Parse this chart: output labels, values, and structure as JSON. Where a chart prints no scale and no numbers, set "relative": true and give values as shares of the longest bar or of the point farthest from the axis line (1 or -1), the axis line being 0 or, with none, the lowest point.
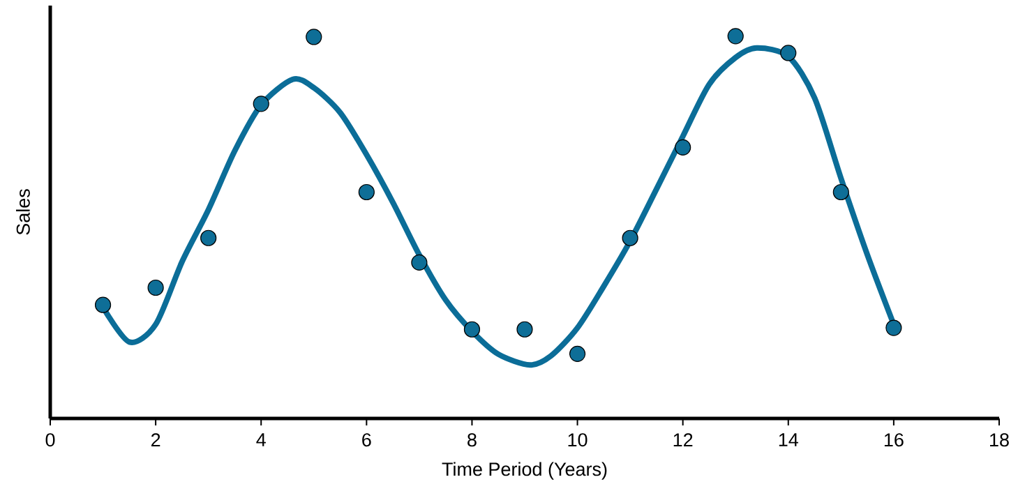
{
  "chart_data": {
    "type": "scatter",
    "xlabel": "Time Period (Years)",
    "ylabel": "Sales",
    "relative": true,
    "xlim": [
      0,
      18
    ],
    "xticks": [
      0,
      2,
      4,
      6,
      8,
      10,
      12,
      14,
      16,
      18
    ],
    "grid": false,
    "series": [
      {
        "type": "line",
        "color": "#0b6d98",
        "marker": "none",
        "line_style": "solid",
        "x": [
          1,
          1.5,
          2,
          2.5,
          3,
          3.5,
          4,
          4.6,
          5,
          5.5,
          6,
          6.5,
          7,
          7.5,
          8,
          8.5,
          9.1,
          9.5,
          10,
          10.5,
          11,
          11.5,
          12,
          12.5,
          13,
          13.4,
          14,
          14.5,
          15,
          15.5,
          16
        ],
        "values": [
          0.291,
          0.2,
          0.246,
          0.41,
          0.546,
          0.7,
          0.82,
          0.887,
          0.865,
          0.8,
          0.69,
          0.565,
          0.428,
          0.31,
          0.228,
          0.168,
          0.14,
          0.164,
          0.237,
          0.346,
          0.464,
          0.6,
          0.738,
          0.874,
          0.944,
          0.969,
          0.947,
          0.838,
          0.628,
          0.428,
          0.246
        ]
      },
      {
        "color": "#0e6e97",
        "marker": "circle",
        "x": [
          1,
          2,
          3,
          4,
          5,
          6,
          7,
          8,
          9,
          10,
          11,
          12,
          13,
          14,
          15,
          16
        ],
        "values": [
          0.297,
          0.342,
          0.472,
          0.823,
          0.998,
          0.592,
          0.408,
          0.233,
          0.233,
          0.169,
          0.472,
          0.709,
          1.0,
          0.956,
          0.592,
          0.237
        ]
      }
    ]
  }
}
